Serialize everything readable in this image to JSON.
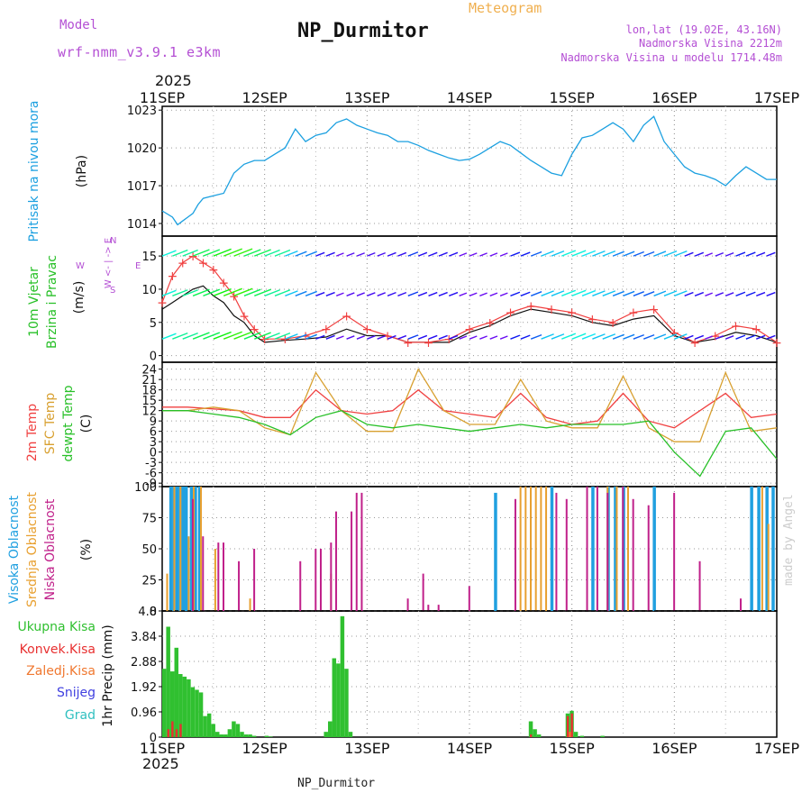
{
  "header": {
    "model_label": "Model",
    "model_value": "wrf-nmm_v3.9.1  e3km",
    "title": "NP_Durmitor",
    "subtitle": "Meteogram",
    "coords": "lon,lat (19.02E, 43.16N)",
    "elevation": "Nadmorska Visina 2212m",
    "model_elevation": "Nadmorska Visina u modelu 1714.48m",
    "footer": "NP_Durmitor",
    "credit": "made by Angel",
    "year": "2025"
  },
  "colors": {
    "purple": "#b44fd4",
    "orange": "#f0b050",
    "pressure": "#1ca0e0",
    "temp2m": "#f04040",
    "sfc": "#d8a030",
    "dew": "#28c028",
    "low_cloud": "#c0208a",
    "mid_cloud": "#e8a030",
    "high_cloud": "#20a0e0",
    "total_precip": "#30c030",
    "conv_precip": "#e83030",
    "frz_precip": "#f07830",
    "snow": "#4040e0",
    "hail": "#30c0c0"
  },
  "x_ticks": [
    "11SEP",
    "12SEP",
    "13SEP",
    "14SEP",
    "15SEP",
    "16SEP",
    "17SEP"
  ],
  "chart_data": [
    {
      "type": "line",
      "title": "Pritisak na nivou mora",
      "ylabel": "(hPa)",
      "ylim": [
        1013,
        1023.3
      ],
      "yticks": [
        1014,
        1017,
        1020,
        1023
      ],
      "x_range": [
        0,
        6
      ],
      "series": [
        {
          "name": "pressure",
          "x": [
            0,
            0.1,
            0.15,
            0.2,
            0.25,
            0.3,
            0.35,
            0.4,
            0.5,
            0.6,
            0.7,
            0.8,
            0.9,
            1.0,
            1.1,
            1.2,
            1.3,
            1.4,
            1.5,
            1.6,
            1.7,
            1.8,
            1.9,
            2.0,
            2.1,
            2.2,
            2.3,
            2.4,
            2.5,
            2.6,
            2.7,
            2.8,
            2.9,
            3.0,
            3.1,
            3.2,
            3.3,
            3.4,
            3.5,
            3.6,
            3.7,
            3.8,
            3.9,
            4.0,
            4.1,
            4.2,
            4.3,
            4.4,
            4.5,
            4.6,
            4.7,
            4.8,
            4.9,
            5.0,
            5.1,
            5.2,
            5.3,
            5.4,
            5.5,
            5.6,
            5.7,
            5.8,
            5.9,
            6.0
          ],
          "y": [
            1015.0,
            1014.5,
            1013.9,
            1014.2,
            1014.5,
            1014.8,
            1015.5,
            1016.0,
            1016.2,
            1016.4,
            1018.0,
            1018.7,
            1019.0,
            1019.0,
            1019.5,
            1020.0,
            1021.5,
            1020.5,
            1021.0,
            1021.2,
            1022.0,
            1022.3,
            1021.8,
            1021.5,
            1021.2,
            1021.0,
            1020.5,
            1020.5,
            1020.2,
            1019.8,
            1019.5,
            1019.2,
            1019.0,
            1019.1,
            1019.5,
            1020.0,
            1020.5,
            1020.2,
            1019.6,
            1019.0,
            1018.5,
            1018.0,
            1017.8,
            1019.5,
            1020.8,
            1021.0,
            1021.5,
            1022.0,
            1021.5,
            1020.5,
            1021.8,
            1022.5,
            1020.5,
            1019.5,
            1018.5,
            1018.0,
            1017.8,
            1017.5,
            1017.0,
            1017.8,
            1018.5,
            1018.0,
            1017.5,
            1017.5
          ]
        }
      ]
    },
    {
      "type": "line",
      "title": "10m Vjetar Brzina i Pravac",
      "ylabel": "(m/s)",
      "legend": [
        "N",
        "W",
        "E",
        "S"
      ],
      "ylim": [
        -1,
        18
      ],
      "yticks": [
        0,
        5,
        10,
        15
      ],
      "x_range": [
        0,
        6
      ],
      "series": [
        {
          "name": "speed",
          "x": [
            0,
            0.1,
            0.2,
            0.3,
            0.4,
            0.5,
            0.6,
            0.7,
            0.8,
            0.9,
            1.0,
            1.2,
            1.4,
            1.6,
            1.8,
            2.0,
            2.2,
            2.4,
            2.6,
            2.8,
            3.0,
            3.2,
            3.4,
            3.6,
            3.8,
            4.0,
            4.2,
            4.4,
            4.6,
            4.8,
            5.0,
            5.2,
            5.4,
            5.6,
            5.8,
            6.0
          ],
          "y": [
            7,
            8,
            9,
            10,
            10.5,
            9,
            8,
            6,
            5,
            3,
            2,
            2.3,
            2.5,
            2.8,
            4,
            3,
            3,
            2,
            2,
            2,
            3.5,
            4.5,
            6,
            7,
            6.5,
            6,
            5,
            4.5,
            5.5,
            6,
            3,
            2,
            2.5,
            3.5,
            3,
            2
          ]
        },
        {
          "name": "gust",
          "x": [
            0,
            0.1,
            0.2,
            0.3,
            0.4,
            0.5,
            0.6,
            0.7,
            0.8,
            0.9,
            1.0,
            1.2,
            1.4,
            1.6,
            1.8,
            2.0,
            2.2,
            2.4,
            2.6,
            2.8,
            3.0,
            3.2,
            3.4,
            3.6,
            3.8,
            4.0,
            4.2,
            4.4,
            4.6,
            4.8,
            5.0,
            5.2,
            5.4,
            5.6,
            5.8,
            6.0
          ],
          "y": [
            8,
            12,
            14,
            15,
            14,
            13,
            11,
            9,
            6,
            4,
            2.5,
            2.5,
            3,
            4,
            6,
            4,
            3,
            2,
            2,
            2.5,
            4,
            5,
            6.5,
            7.5,
            7,
            6.5,
            5.5,
            5,
            6.5,
            7,
            3.5,
            2,
            3,
            4.5,
            4,
            2
          ]
        }
      ]
    },
    {
      "type": "line",
      "title": "2m Temp / SFC Temp / dewpt Temp",
      "ylabel": "(C)",
      "ylim": [
        -10,
        26
      ],
      "yticks": [
        -9,
        -6,
        -3,
        0,
        3,
        6,
        9,
        12,
        15,
        18,
        21,
        24
      ],
      "x_range": [
        0,
        6
      ],
      "series": [
        {
          "name": "2m Temp",
          "x": [
            0,
            0.25,
            0.5,
            0.75,
            1.0,
            1.25,
            1.5,
            1.75,
            2.0,
            2.25,
            2.5,
            2.75,
            3.0,
            3.25,
            3.5,
            3.75,
            4.0,
            4.25,
            4.5,
            4.75,
            5.0,
            5.25,
            5.5,
            5.75,
            6.0
          ],
          "y": [
            13,
            13,
            12.5,
            12,
            10,
            10,
            18,
            12,
            11,
            12,
            18,
            12,
            11,
            10,
            17,
            10,
            8,
            9,
            17,
            9,
            7,
            12,
            17,
            10,
            11
          ]
        },
        {
          "name": "SFC Temp",
          "x": [
            0,
            0.25,
            0.5,
            0.75,
            1.0,
            1.25,
            1.5,
            1.75,
            2.0,
            2.25,
            2.5,
            2.75,
            3.0,
            3.25,
            3.5,
            3.75,
            4.0,
            4.25,
            4.5,
            4.75,
            5.0,
            5.25,
            5.5,
            5.75,
            6.0
          ],
          "y": [
            12,
            12,
            13,
            12,
            7,
            5,
            23,
            12,
            6,
            6,
            24,
            12,
            8,
            8,
            21,
            9,
            7,
            7,
            22,
            7,
            3,
            3,
            23,
            6,
            7
          ]
        },
        {
          "name": "dewpt Temp",
          "x": [
            0,
            0.25,
            0.5,
            0.75,
            1.0,
            1.25,
            1.5,
            1.75,
            2.0,
            2.25,
            2.5,
            2.75,
            3.0,
            3.25,
            3.5,
            3.75,
            4.0,
            4.25,
            4.5,
            4.75,
            5.0,
            5.25,
            5.5,
            5.75,
            6.0
          ],
          "y": [
            12,
            12,
            11,
            10,
            8,
            5,
            10,
            12,
            8,
            7,
            8,
            7,
            6,
            7,
            8,
            7,
            8,
            8,
            8,
            9,
            0,
            -7,
            6,
            7,
            -2
          ]
        }
      ]
    },
    {
      "type": "bar",
      "title": "Visoka / Srednja / Niska Oblacnost",
      "ylabel": "(%)",
      "ylim": [
        0,
        100
      ],
      "yticks": [
        0,
        25,
        50,
        75,
        100
      ],
      "x_range": [
        0,
        6
      ],
      "series": [
        {
          "name": "Visoka Oblacnost",
          "x": [
            0.08,
            0.11,
            0.14,
            0.17,
            0.2,
            0.23,
            0.28,
            0.32,
            0.36,
            3.25,
            3.8,
            4.2,
            4.35,
            4.42,
            4.5,
            4.8,
            5.75,
            5.82,
            5.9,
            5.96
          ],
          "values": [
            100,
            100,
            100,
            100,
            100,
            100,
            100,
            100,
            100,
            95,
            100,
            100,
            100,
            100,
            100,
            100,
            100,
            100,
            100,
            100
          ]
        },
        {
          "name": "Srednja Oblacnost",
          "x": [
            0.05,
            0.12,
            0.18,
            0.26,
            0.31,
            0.38,
            0.52,
            0.86,
            1.65,
            3.5,
            3.55,
            3.6,
            3.65,
            3.7,
            3.75,
            4.35,
            4.44,
            4.55,
            5.86,
            5.92
          ],
          "values": [
            30,
            100,
            100,
            60,
            100,
            100,
            50,
            10,
            30,
            100,
            100,
            100,
            100,
            100,
            100,
            100,
            100,
            100,
            100,
            70
          ]
        },
        {
          "name": "Niska Oblacnost",
          "x": [
            0.3,
            0.4,
            0.55,
            0.6,
            0.75,
            0.9,
            1.35,
            1.5,
            1.55,
            1.65,
            1.7,
            1.85,
            1.9,
            1.95,
            2.4,
            2.55,
            2.6,
            2.7,
            3.0,
            3.45,
            3.85,
            3.95,
            4.15,
            4.25,
            4.35,
            4.5,
            4.6,
            4.75,
            5.0,
            5.25,
            5.65
          ],
          "values": [
            90,
            60,
            55,
            55,
            40,
            50,
            40,
            50,
            50,
            55,
            80,
            80,
            95,
            95,
            10,
            30,
            5,
            5,
            20,
            90,
            95,
            90,
            100,
            100,
            95,
            100,
            90,
            85,
            95,
            40,
            10
          ]
        }
      ]
    },
    {
      "type": "bar",
      "title": "1hr Precip",
      "ylabel": "(mm)",
      "legend": [
        "Ukupna Kisa",
        "Konvek.Kisa",
        "Zaledj.Kisa",
        "Snijeg",
        "Grad"
      ],
      "ylim": [
        0,
        4.8
      ],
      "yticks": [
        0,
        0.96,
        1.92,
        2.88,
        3.84,
        4.8
      ],
      "x_range": [
        0,
        6
      ],
      "series": [
        {
          "name": "Ukupna Kisa",
          "x": [
            0.02,
            0.06,
            0.1,
            0.14,
            0.18,
            0.22,
            0.26,
            0.3,
            0.34,
            0.38,
            0.42,
            0.46,
            0.5,
            0.54,
            0.58,
            0.62,
            0.66,
            0.7,
            0.74,
            0.78,
            0.82,
            0.86,
            0.9,
            1.02,
            1.06,
            1.6,
            1.64,
            1.68,
            1.72,
            1.76,
            1.8,
            1.84,
            3.6,
            3.64,
            3.68,
            3.96,
            4.0,
            4.04,
            4.1,
            4.3
          ],
          "values": [
            2.6,
            4.2,
            2.5,
            3.4,
            2.4,
            2.3,
            2.2,
            1.9,
            1.8,
            1.7,
            0.8,
            0.9,
            0.5,
            0.2,
            0.1,
            0.1,
            0.3,
            0.6,
            0.5,
            0.2,
            0.1,
            0.1,
            0.05,
            0.05,
            0.02,
            0.2,
            0.6,
            3.0,
            2.8,
            4.6,
            2.6,
            0.2,
            0.6,
            0.3,
            0.1,
            0.9,
            1.0,
            0.2,
            0.05,
            0.05
          ]
        },
        {
          "name": "Konvek.Kisa",
          "x": [
            0.06,
            0.1,
            0.14,
            0.18,
            3.6,
            3.96,
            4.0
          ],
          "values": [
            0.3,
            0.6,
            0.3,
            0.5,
            0.1,
            0.8,
            0.9
          ]
        },
        {
          "name": "Zaledj.Kisa",
          "x": [
            3.98
          ],
          "values": [
            0.2
          ]
        },
        {
          "name": "Snijeg",
          "x": [],
          "values": []
        },
        {
          "name": "Grad",
          "x": [],
          "values": []
        }
      ]
    }
  ]
}
